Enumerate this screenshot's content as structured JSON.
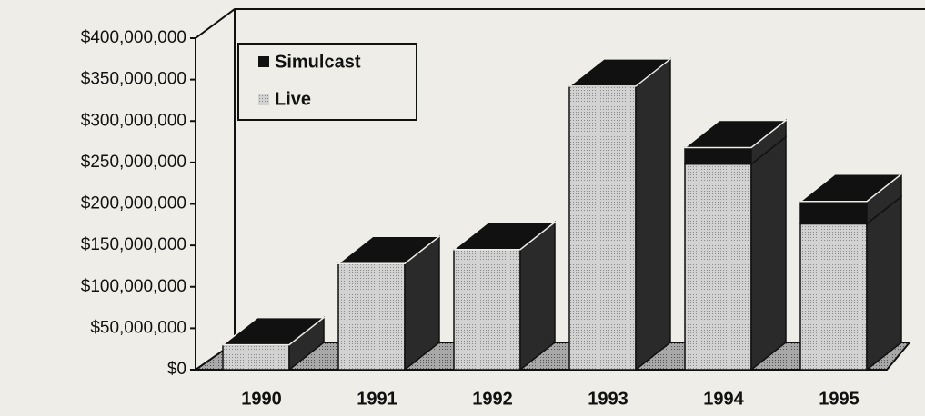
{
  "chart_data": {
    "type": "bar3d_stacked",
    "categories": [
      "1990",
      "1991",
      "1992",
      "1993",
      "1994",
      "1995"
    ],
    "series": [
      {
        "name": "Live",
        "color": "#c9c9c9",
        "values": [
          30000000,
          128000000,
          145000000,
          342000000,
          248000000,
          176000000
        ]
      },
      {
        "name": "Simulcast",
        "color": "#111111",
        "values": [
          0,
          0,
          0,
          0,
          20000000,
          27000000
        ]
      }
    ],
    "ylim": [
      0,
      400000000
    ],
    "yticks": [
      {
        "value": 0,
        "label": "$0"
      },
      {
        "value": 50000000,
        "label": "$50,000,000"
      },
      {
        "value": 100000000,
        "label": "$100,000,000"
      },
      {
        "value": 150000000,
        "label": "$150,000,000"
      },
      {
        "value": 200000000,
        "label": "$200,000,000"
      },
      {
        "value": 250000000,
        "label": "$250,000,000"
      },
      {
        "value": 300000000,
        "label": "$300,000,000"
      },
      {
        "value": 350000000,
        "label": "$350,000,000"
      },
      {
        "value": 400000000,
        "label": "$400,000,000"
      }
    ],
    "legend": "top-left"
  }
}
